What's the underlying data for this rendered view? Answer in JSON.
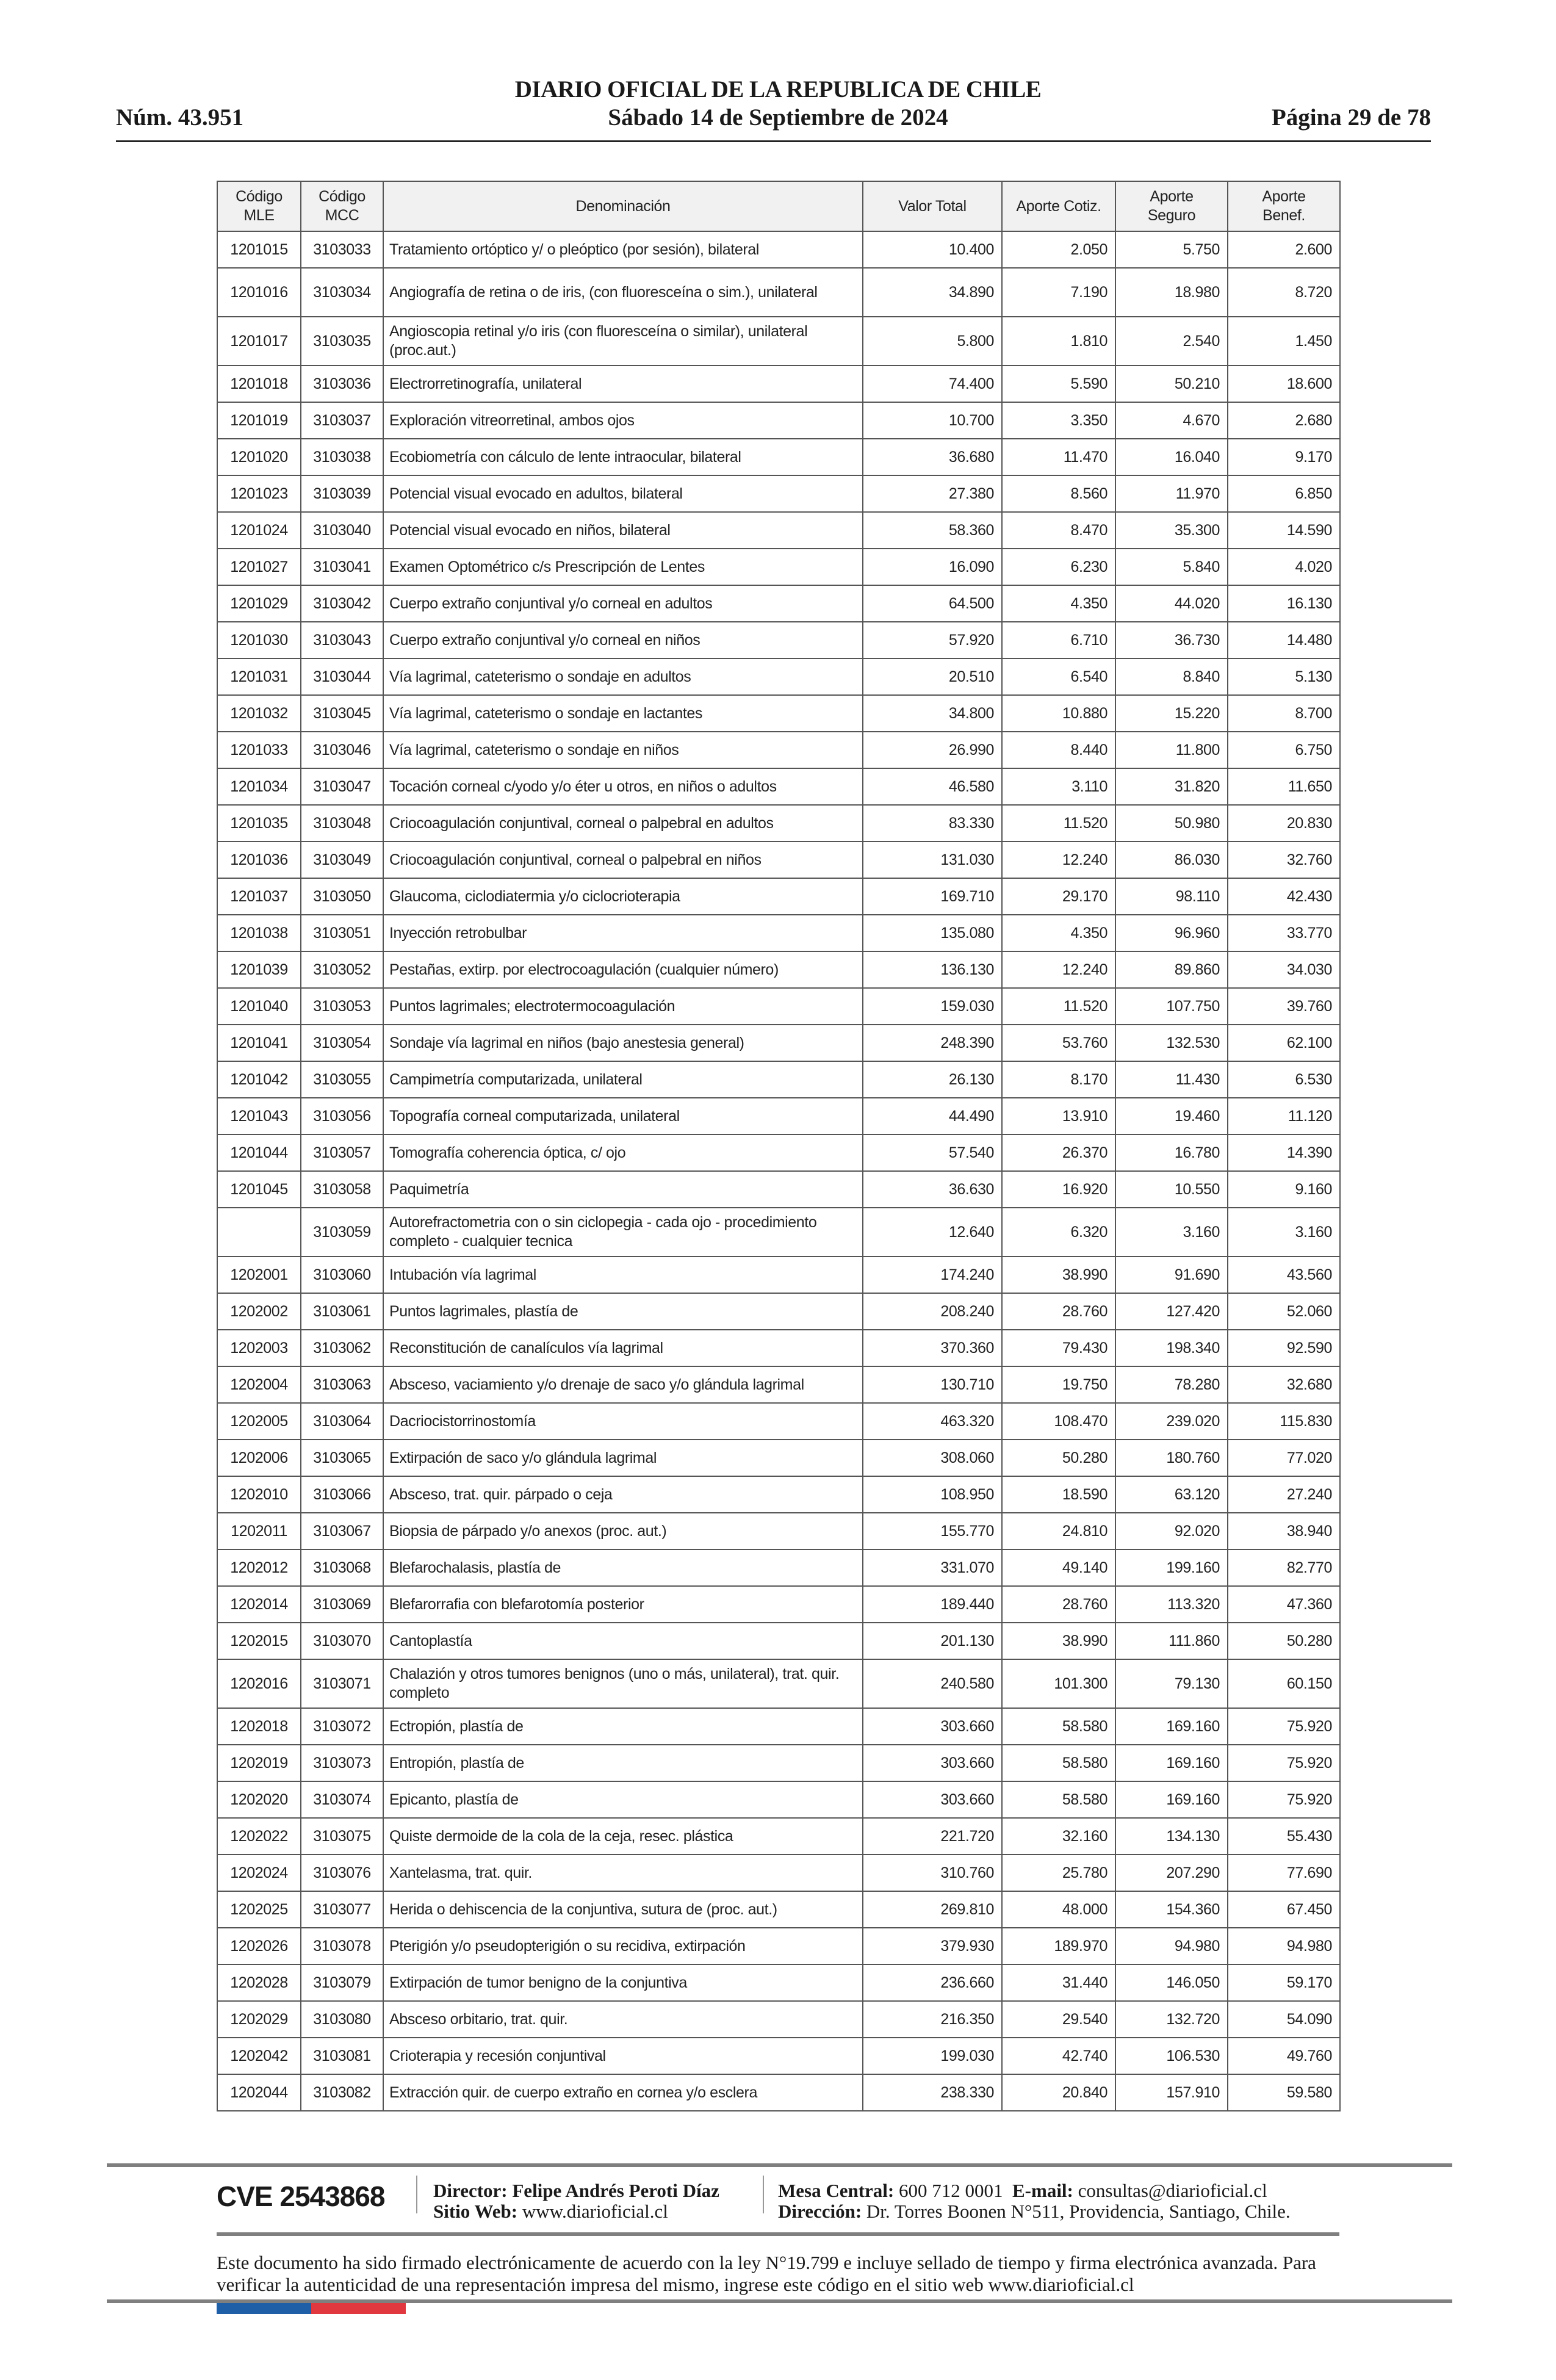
{
  "header": {
    "publication": "DIARIO OFICIAL DE LA REPUBLICA DE CHILE",
    "issue": "Núm. 43.951",
    "date": "Sábado 14 de Septiembre de 2024",
    "page": "Página 29 de 78"
  },
  "table": {
    "columns": [
      [
        "Código",
        "MLE"
      ],
      [
        "Código",
        "MCC"
      ],
      [
        "Denominación"
      ],
      [
        "Valor Total"
      ],
      [
        "Aporte Cotiz."
      ],
      [
        "Aporte",
        "Seguro"
      ],
      [
        "Aporte",
        "Benef."
      ]
    ],
    "rows": [
      [
        "1201015",
        "3103033",
        "Tratamiento ortóptico y/ o pleóptico (por sesión), bilateral",
        "10.400",
        "2.050",
        "5.750",
        "2.600"
      ],
      [
        "1201016",
        "3103034",
        "Angiografía de retina o de iris, (con fluoresceína o sim.), unilateral",
        "34.890",
        "7.190",
        "18.980",
        "8.720"
      ],
      [
        "1201017",
        "3103035",
        "Angioscopia retinal y/o iris (con fluoresceína o similar), unilateral (proc.aut.)",
        "5.800",
        "1.810",
        "2.540",
        "1.450"
      ],
      [
        "1201018",
        "3103036",
        "Electrorretinografía, unilateral",
        "74.400",
        "5.590",
        "50.210",
        "18.600"
      ],
      [
        "1201019",
        "3103037",
        "Exploración vitreorretinal, ambos ojos",
        "10.700",
        "3.350",
        "4.670",
        "2.680"
      ],
      [
        "1201020",
        "3103038",
        "Ecobiometría con cálculo de lente intraocular, bilateral",
        "36.680",
        "11.470",
        "16.040",
        "9.170"
      ],
      [
        "1201023",
        "3103039",
        "Potencial visual evocado en adultos, bilateral",
        "27.380",
        "8.560",
        "11.970",
        "6.850"
      ],
      [
        "1201024",
        "3103040",
        "Potencial visual evocado en niños, bilateral",
        "58.360",
        "8.470",
        "35.300",
        "14.590"
      ],
      [
        "1201027",
        "3103041",
        "Examen Optométrico c/s Prescripción de Lentes",
        "16.090",
        "6.230",
        "5.840",
        "4.020"
      ],
      [
        "1201029",
        "3103042",
        "Cuerpo extraño conjuntival y/o corneal en adultos",
        "64.500",
        "4.350",
        "44.020",
        "16.130"
      ],
      [
        "1201030",
        "3103043",
        "Cuerpo extraño conjuntival y/o corneal en niños",
        "57.920",
        "6.710",
        "36.730",
        "14.480"
      ],
      [
        "1201031",
        "3103044",
        "Vía lagrimal, cateterismo o sondaje en adultos",
        "20.510",
        "6.540",
        "8.840",
        "5.130"
      ],
      [
        "1201032",
        "3103045",
        "Vía lagrimal, cateterismo o sondaje en lactantes",
        "34.800",
        "10.880",
        "15.220",
        "8.700"
      ],
      [
        "1201033",
        "3103046",
        "Vía lagrimal, cateterismo o sondaje en niños",
        "26.990",
        "8.440",
        "11.800",
        "6.750"
      ],
      [
        "1201034",
        "3103047",
        "Tocación corneal c/yodo y/o éter u otros, en niños o adultos",
        "46.580",
        "3.110",
        "31.820",
        "11.650"
      ],
      [
        "1201035",
        "3103048",
        "Criocoagulación conjuntival, corneal o palpebral en adultos",
        "83.330",
        "11.520",
        "50.980",
        "20.830"
      ],
      [
        "1201036",
        "3103049",
        "Criocoagulación conjuntival, corneal o palpebral en niños",
        "131.030",
        "12.240",
        "86.030",
        "32.760"
      ],
      [
        "1201037",
        "3103050",
        "Glaucoma, ciclodiatermia y/o ciclocrioterapia",
        "169.710",
        "29.170",
        "98.110",
        "42.430"
      ],
      [
        "1201038",
        "3103051",
        "Inyección retrobulbar",
        "135.080",
        "4.350",
        "96.960",
        "33.770"
      ],
      [
        "1201039",
        "3103052",
        "Pestañas, extirp. por electrocoagulación (cualquier número)",
        "136.130",
        "12.240",
        "89.860",
        "34.030"
      ],
      [
        "1201040",
        "3103053",
        "Puntos lagrimales; electrotermocoagulación",
        "159.030",
        "11.520",
        "107.750",
        "39.760"
      ],
      [
        "1201041",
        "3103054",
        "Sondaje vía lagrimal en niños (bajo anestesia general)",
        "248.390",
        "53.760",
        "132.530",
        "62.100"
      ],
      [
        "1201042",
        "3103055",
        "Campimetría computarizada, unilateral",
        "26.130",
        "8.170",
        "11.430",
        "6.530"
      ],
      [
        "1201043",
        "3103056",
        "Topografía corneal computarizada, unilateral",
        "44.490",
        "13.910",
        "19.460",
        "11.120"
      ],
      [
        "1201044",
        "3103057",
        "Tomografía coherencia óptica, c/ ojo",
        "57.540",
        "26.370",
        "16.780",
        "14.390"
      ],
      [
        "1201045",
        "3103058",
        "Paquimetría",
        "36.630",
        "16.920",
        "10.550",
        "9.160"
      ],
      [
        "",
        "3103059",
        "Autorefractometria  con o sin  ciclopegia  - cada ojo - procedimiento completo - cualquier tecnica",
        "12.640",
        "6.320",
        "3.160",
        "3.160"
      ],
      [
        "1202001",
        "3103060",
        "Intubación vía lagrimal",
        "174.240",
        "38.990",
        "91.690",
        "43.560"
      ],
      [
        "1202002",
        "3103061",
        "Puntos lagrimales, plastía de",
        "208.240",
        "28.760",
        "127.420",
        "52.060"
      ],
      [
        "1202003",
        "3103062",
        "Reconstitución de canalículos vía lagrimal",
        "370.360",
        "79.430",
        "198.340",
        "92.590"
      ],
      [
        "1202004",
        "3103063",
        "Absceso, vaciamiento y/o drenaje de saco y/o glándula lagrimal",
        "130.710",
        "19.750",
        "78.280",
        "32.680"
      ],
      [
        "1202005",
        "3103064",
        "Dacriocistorrinostomía",
        "463.320",
        "108.470",
        "239.020",
        "115.830"
      ],
      [
        "1202006",
        "3103065",
        "Extirpación de saco y/o glándula lagrimal",
        "308.060",
        "50.280",
        "180.760",
        "77.020"
      ],
      [
        "1202010",
        "3103066",
        "Absceso, trat. quir. párpado o ceja",
        "108.950",
        "18.590",
        "63.120",
        "27.240"
      ],
      [
        "1202011",
        "3103067",
        "Biopsia de párpado y/o anexos (proc. aut.)",
        "155.770",
        "24.810",
        "92.020",
        "38.940"
      ],
      [
        "1202012",
        "3103068",
        "Blefarochalasis, plastía de",
        "331.070",
        "49.140",
        "199.160",
        "82.770"
      ],
      [
        "1202014",
        "3103069",
        "Blefarorrafia con blefarotomía posterior",
        "189.440",
        "28.760",
        "113.320",
        "47.360"
      ],
      [
        "1202015",
        "3103070",
        "Cantoplastía",
        "201.130",
        "38.990",
        "111.860",
        "50.280"
      ],
      [
        "1202016",
        "3103071",
        "Chalazión y otros tumores benignos (uno o más, unilateral), trat. quir. completo",
        "240.580",
        "101.300",
        "79.130",
        "60.150"
      ],
      [
        "1202018",
        "3103072",
        "Ectropión, plastía de",
        "303.660",
        "58.580",
        "169.160",
        "75.920"
      ],
      [
        "1202019",
        "3103073",
        "Entropión, plastía de",
        "303.660",
        "58.580",
        "169.160",
        "75.920"
      ],
      [
        "1202020",
        "3103074",
        "Epicanto, plastía de",
        "303.660",
        "58.580",
        "169.160",
        "75.920"
      ],
      [
        "1202022",
        "3103075",
        "Quiste dermoide de la cola de la ceja, resec. plástica",
        "221.720",
        "32.160",
        "134.130",
        "55.430"
      ],
      [
        "1202024",
        "3103076",
        "Xantelasma, trat. quir.",
        "310.760",
        "25.780",
        "207.290",
        "77.690"
      ],
      [
        "1202025",
        "3103077",
        "Herida o dehiscencia de la conjuntiva, sutura de (proc. aut.)",
        "269.810",
        "48.000",
        "154.360",
        "67.450"
      ],
      [
        "1202026",
        "3103078",
        "Pterigión y/o pseudopterigión o su recidiva, extirpación",
        "379.930",
        "189.970",
        "94.980",
        "94.980"
      ],
      [
        "1202028",
        "3103079",
        "Extirpación de tumor benigno de la conjuntiva",
        "236.660",
        "31.440",
        "146.050",
        "59.170"
      ],
      [
        "1202029",
        "3103080",
        "Absceso orbitario, trat. quir.",
        "216.350",
        "29.540",
        "132.720",
        "54.090"
      ],
      [
        "1202042",
        "3103081",
        "Crioterapia y recesión conjuntival",
        "199.030",
        "42.740",
        "106.530",
        "49.760"
      ],
      [
        "1202044",
        "3103082",
        "Extracción quir. de cuerpo extraño en cornea y/o esclera",
        "238.330",
        "20.840",
        "157.910",
        "59.580"
      ]
    ]
  },
  "footer": {
    "cve": "CVE 2543868",
    "director_label": "Director:",
    "director": "Felipe Andrés Peroti Díaz",
    "web_label": "Sitio Web:",
    "web": "www.diarioficial.cl",
    "phone_label": "Mesa Central:",
    "phone": "600 712 0001",
    "email_label": "E-mail:",
    "email": "consultas@diarioficial.cl",
    "address_label": "Dirección:",
    "address": "Dr. Torres Boonen N°511, Providencia, Santiago, Chile.",
    "legal": "Este documento ha sido firmado electrónicamente de acuerdo con la ley N°19.799 e incluye sellado de tiempo y firma electrónica avanzada. Para verificar la autenticidad de una representación impresa del mismo, ingrese este código en el sitio web www.diarioficial.cl",
    "flag_colors": [
      "#1f5fa8",
      "#e0383e"
    ]
  }
}
